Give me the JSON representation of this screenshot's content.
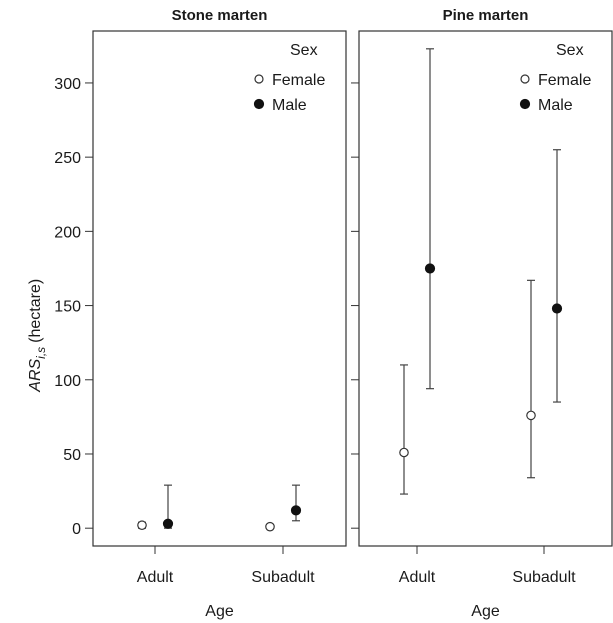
{
  "chart_data": {
    "type": "scatter",
    "ylabel": {
      "main": "ARS",
      "sub": "i,s",
      "unit": "(hectare)"
    },
    "ylim": [
      -12,
      335
    ],
    "y_ticks": [
      0,
      50,
      100,
      150,
      200,
      250,
      300
    ],
    "grid": false,
    "legend": {
      "title": "Sex",
      "position": "top-right",
      "entries": [
        "Female",
        "Male"
      ]
    },
    "series_styles": {
      "Female": {
        "marker": "open-circle",
        "color": "#333333"
      },
      "Male": {
        "marker": "filled-circle",
        "color": "#111111"
      }
    },
    "panels": [
      {
        "title": "Stone marten",
        "xlabel": "Age",
        "categories": [
          "Adult",
          "Subadult"
        ],
        "series": [
          {
            "name": "Female",
            "values": [
              2,
              1
            ],
            "lower": [
              0,
              0
            ],
            "upper": [
              4,
              2
            ]
          },
          {
            "name": "Male",
            "values": [
              3,
              12
            ],
            "lower": [
              0,
              5
            ],
            "upper": [
              29,
              29
            ]
          }
        ]
      },
      {
        "title": "Pine marten",
        "xlabel": "Age",
        "categories": [
          "Adult",
          "Subadult"
        ],
        "series": [
          {
            "name": "Female",
            "values": [
              51,
              76
            ],
            "lower": [
              23,
              34
            ],
            "upper": [
              110,
              167
            ]
          },
          {
            "name": "Male",
            "values": [
              175,
              148
            ],
            "lower": [
              94,
              85
            ],
            "upper": [
              323,
              255
            ]
          }
        ]
      }
    ]
  }
}
